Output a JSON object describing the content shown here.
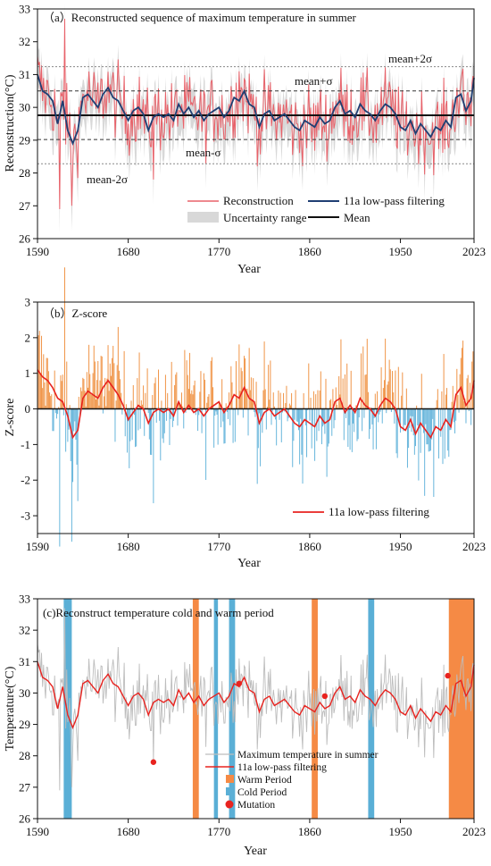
{
  "chart_data": [
    {
      "panel": "a",
      "type": "line",
      "title": "（a）Reconstructed sequence of maximum temperature in summer",
      "xlabel": "Year",
      "ylabel": "Reconstruction(°C)",
      "xlim": [
        1590,
        2023
      ],
      "ylim": [
        26,
        33
      ],
      "xticks": [
        1590,
        1680,
        1770,
        1860,
        1950,
        2023
      ],
      "yticks": [
        26,
        27,
        28,
        29,
        30,
        31,
        32,
        33
      ],
      "grid": false,
      "legend_position": "bottom-right",
      "reference_lines": [
        {
          "label": "mean+2σ",
          "value": 31.24
        },
        {
          "label": "mean+σ",
          "value": 30.5
        },
        {
          "label": "Mean",
          "value": 29.76
        },
        {
          "label": "mean-σ",
          "value": 29.02
        },
        {
          "label": "mean-2σ",
          "value": 28.28
        }
      ],
      "low_pass_series": {
        "name": "11a low-pass filtering",
        "x": [
          1590,
          1595,
          1600,
          1605,
          1610,
          1615,
          1620,
          1625,
          1630,
          1635,
          1640,
          1645,
          1650,
          1655,
          1660,
          1665,
          1670,
          1675,
          1680,
          1685,
          1690,
          1695,
          1700,
          1705,
          1710,
          1715,
          1720,
          1725,
          1730,
          1735,
          1740,
          1745,
          1750,
          1755,
          1760,
          1765,
          1770,
          1775,
          1780,
          1785,
          1790,
          1795,
          1800,
          1805,
          1810,
          1815,
          1820,
          1825,
          1830,
          1835,
          1840,
          1845,
          1850,
          1855,
          1860,
          1865,
          1870,
          1875,
          1880,
          1885,
          1890,
          1895,
          1900,
          1905,
          1910,
          1915,
          1920,
          1925,
          1930,
          1935,
          1940,
          1945,
          1950,
          1955,
          1960,
          1965,
          1970,
          1975,
          1980,
          1985,
          1990,
          1995,
          2000,
          2005,
          2010,
          2015,
          2020,
          2023
        ],
        "values": [
          31.0,
          30.5,
          30.4,
          30.2,
          29.5,
          30.2,
          29.3,
          28.9,
          29.3,
          30.3,
          30.4,
          30.2,
          30.0,
          30.4,
          30.6,
          30.3,
          30.2,
          29.9,
          29.6,
          29.9,
          30.0,
          29.8,
          29.3,
          29.7,
          29.8,
          29.7,
          29.8,
          29.6,
          30.1,
          29.8,
          30.0,
          29.7,
          29.9,
          29.6,
          29.8,
          29.9,
          30.0,
          29.7,
          29.9,
          30.3,
          30.2,
          30.5,
          30.1,
          30.0,
          29.4,
          29.8,
          29.9,
          29.6,
          29.7,
          29.8,
          29.6,
          29.4,
          29.3,
          29.6,
          29.5,
          29.4,
          29.7,
          29.5,
          29.6,
          30.0,
          30.2,
          29.8,
          29.9,
          29.7,
          30.1,
          29.9,
          29.8,
          29.6,
          29.9,
          30.1,
          30.0,
          29.8,
          29.4,
          29.3,
          29.6,
          29.2,
          29.5,
          29.3,
          29.1,
          29.4,
          29.3,
          29.6,
          29.4,
          30.3,
          30.4,
          29.9,
          30.2,
          30.9
        ]
      },
      "legend": [
        "Reconstruction",
        "11a low-pass filtering",
        "Uncertainty range",
        "Mean"
      ],
      "colors": {
        "reconstruction": "#e8626a",
        "low_pass": "#1f3f73",
        "uncertainty": "#d8d8d8",
        "mean": "#111111",
        "sigma_lines": "#333333",
        "sigma2_lines": "#888888"
      }
    },
    {
      "panel": "b",
      "type": "bar",
      "title": "（b）Z-score",
      "xlabel": "Year",
      "ylabel": "Z-score",
      "xlim": [
        1590,
        2023
      ],
      "ylim": [
        -3.5,
        3
      ],
      "xticks": [
        1590,
        1680,
        1770,
        1860,
        1950,
        2023
      ],
      "yticks": [
        -3,
        -2,
        -1,
        0,
        1,
        2,
        3
      ],
      "grid": false,
      "legend_position": "bottom-right",
      "low_pass_series": {
        "name": "11a low-pass filtering",
        "x": [
          1590,
          1595,
          1600,
          1605,
          1610,
          1615,
          1620,
          1625,
          1630,
          1635,
          1640,
          1645,
          1650,
          1655,
          1660,
          1665,
          1670,
          1675,
          1680,
          1685,
          1690,
          1695,
          1700,
          1705,
          1710,
          1715,
          1720,
          1725,
          1730,
          1735,
          1740,
          1745,
          1750,
          1755,
          1760,
          1765,
          1770,
          1775,
          1780,
          1785,
          1790,
          1795,
          1800,
          1805,
          1810,
          1815,
          1820,
          1825,
          1830,
          1835,
          1840,
          1845,
          1850,
          1855,
          1860,
          1865,
          1870,
          1875,
          1880,
          1885,
          1890,
          1895,
          1900,
          1905,
          1910,
          1915,
          1920,
          1925,
          1930,
          1935,
          1940,
          1945,
          1950,
          1955,
          1960,
          1965,
          1970,
          1975,
          1980,
          1985,
          1990,
          1995,
          2000,
          2005,
          2010,
          2015,
          2020,
          2023
        ],
        "values": [
          1.1,
          0.9,
          0.8,
          0.6,
          0.3,
          0.2,
          -0.2,
          -0.8,
          -0.6,
          0.3,
          0.5,
          0.4,
          0.3,
          0.6,
          0.8,
          0.6,
          0.4,
          0.1,
          -0.3,
          -0.1,
          0.1,
          0.0,
          -0.4,
          -0.1,
          0.0,
          -0.1,
          0.0,
          -0.2,
          0.2,
          -0.1,
          0.1,
          -0.1,
          0.0,
          -0.2,
          0.0,
          0.1,
          0.2,
          -0.1,
          0.1,
          0.4,
          0.3,
          0.6,
          0.3,
          0.2,
          -0.4,
          -0.1,
          0.0,
          -0.2,
          -0.1,
          0.0,
          -0.2,
          -0.4,
          -0.5,
          -0.3,
          -0.4,
          -0.5,
          -0.2,
          -0.4,
          -0.3,
          0.2,
          0.3,
          -0.1,
          0.1,
          -0.1,
          0.3,
          0.1,
          0.0,
          -0.2,
          0.1,
          0.3,
          0.2,
          0.0,
          -0.5,
          -0.6,
          -0.3,
          -0.7,
          -0.4,
          -0.6,
          -0.8,
          -0.5,
          -0.6,
          -0.3,
          -0.5,
          0.4,
          0.6,
          0.1,
          0.3,
          0.8
        ]
      },
      "colors": {
        "positive": "#f0964a",
        "negative": "#6ab7dc",
        "low_pass": "#e8231f"
      }
    },
    {
      "panel": "c",
      "type": "line",
      "title": "(c)Reconstruct temperature cold and warm period",
      "xlabel": "Year",
      "ylabel": "Temperature(°C)",
      "xlim": [
        1590,
        2023
      ],
      "ylim": [
        26,
        33
      ],
      "xticks": [
        1590,
        1680,
        1770,
        1860,
        1950,
        2023
      ],
      "yticks": [
        26,
        27,
        28,
        29,
        30,
        31,
        32,
        33
      ],
      "grid": false,
      "legend_position": "bottom-center",
      "legend": [
        "Maximum temperature in summer",
        "11a low-pass filtering",
        "Warm Period",
        "Cold Period",
        "Mutation"
      ],
      "cold_periods": [
        [
          1616,
          1624
        ],
        [
          1765,
          1769
        ],
        [
          1780,
          1786
        ],
        [
          1918,
          1924
        ]
      ],
      "warm_periods": [
        [
          1744,
          1750
        ],
        [
          1862,
          1868
        ],
        [
          1998,
          2023
        ]
      ],
      "mutations": [
        [
          1705,
          27.8
        ],
        [
          1790,
          30.3
        ],
        [
          1875,
          29.9
        ],
        [
          1997,
          30.55
        ]
      ],
      "low_pass_series": {
        "name": "11a low-pass filtering",
        "x": [
          1590,
          1595,
          1600,
          1605,
          1610,
          1615,
          1620,
          1625,
          1630,
          1635,
          1640,
          1645,
          1650,
          1655,
          1660,
          1665,
          1670,
          1675,
          1680,
          1685,
          1690,
          1695,
          1700,
          1705,
          1710,
          1715,
          1720,
          1725,
          1730,
          1735,
          1740,
          1745,
          1750,
          1755,
          1760,
          1765,
          1770,
          1775,
          1780,
          1785,
          1790,
          1795,
          1800,
          1805,
          1810,
          1815,
          1820,
          1825,
          1830,
          1835,
          1840,
          1845,
          1850,
          1855,
          1860,
          1865,
          1870,
          1875,
          1880,
          1885,
          1890,
          1895,
          1900,
          1905,
          1910,
          1915,
          1920,
          1925,
          1930,
          1935,
          1940,
          1945,
          1950,
          1955,
          1960,
          1965,
          1970,
          1975,
          1980,
          1985,
          1990,
          1995,
          2000,
          2005,
          2010,
          2015,
          2020,
          2023
        ],
        "values": [
          31.0,
          30.5,
          30.4,
          30.2,
          29.5,
          30.2,
          29.3,
          28.9,
          29.3,
          30.3,
          30.4,
          30.2,
          30.0,
          30.4,
          30.6,
          30.3,
          30.2,
          29.9,
          29.6,
          29.9,
          30.0,
          29.8,
          29.3,
          29.7,
          29.8,
          29.7,
          29.8,
          29.6,
          30.1,
          29.8,
          30.0,
          29.7,
          29.9,
          29.6,
          29.8,
          29.9,
          30.0,
          29.7,
          29.9,
          30.3,
          30.2,
          30.5,
          30.1,
          30.0,
          29.4,
          29.8,
          29.9,
          29.6,
          29.7,
          29.8,
          29.6,
          29.4,
          29.3,
          29.6,
          29.5,
          29.4,
          29.7,
          29.5,
          29.6,
          30.0,
          30.2,
          29.8,
          29.9,
          29.7,
          30.1,
          29.9,
          29.8,
          29.6,
          29.9,
          30.1,
          30.0,
          29.8,
          29.4,
          29.3,
          29.6,
          29.2,
          29.5,
          29.3,
          29.1,
          29.4,
          29.3,
          29.6,
          29.4,
          30.3,
          30.4,
          29.9,
          30.2,
          30.9
        ]
      },
      "colors": {
        "raw": "#bdbdbd",
        "low_pass": "#e8231f",
        "warm": "#f58a45",
        "cold": "#5aafd6",
        "mutation": "#e8231f"
      }
    }
  ],
  "annotations": {
    "a": {
      "mean_plus_2sigma": "mean+2σ",
      "mean_plus_sigma": "mean+σ",
      "mean_minus_sigma": "mean-σ",
      "mean_minus_2sigma": "mean-2σ"
    }
  }
}
